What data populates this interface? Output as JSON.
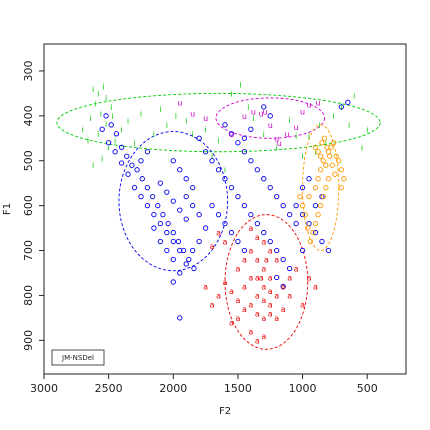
{
  "chart_data": {
    "type": "scatter",
    "title": "",
    "xlabel": "F2",
    "ylabel": "F1",
    "xlim": [
      3000,
      200
    ],
    "ylim": [
      975,
      240
    ],
    "x_reversed": true,
    "y_reversed": true,
    "x_ticks": [
      3000,
      2500,
      2000,
      1500,
      1000,
      500
    ],
    "y_ticks": [
      300,
      400,
      500,
      600,
      700,
      800,
      900
    ],
    "x_tick_labels": [
      "3000",
      "2500",
      "2000",
      "1500",
      "1000",
      "500"
    ],
    "y_tick_labels": [
      "300",
      "400",
      "500",
      "600",
      "700",
      "800",
      "900"
    ],
    "grid": false,
    "legend": {
      "position": "bottom-left",
      "entries": [
        "JM-NSDel"
      ]
    },
    "series": [
      {
        "symbol": "i",
        "color": "#00cc00",
        "marker": "glyph",
        "points": [
          [
            2620,
            340
          ],
          [
            2580,
            350
          ],
          [
            2540,
            335
          ],
          [
            2600,
            372
          ],
          [
            2520,
            360
          ],
          [
            2480,
            380
          ],
          [
            2560,
            395
          ],
          [
            2640,
            405
          ],
          [
            2520,
            418
          ],
          [
            2470,
            400
          ],
          [
            2580,
            440
          ],
          [
            2660,
            455
          ],
          [
            2700,
            430
          ],
          [
            2500,
            470
          ],
          [
            2550,
            495
          ],
          [
            2620,
            510
          ],
          [
            2450,
            455
          ],
          [
            2350,
            410
          ],
          [
            2250,
            395
          ],
          [
            2100,
            385
          ],
          [
            2050,
            420
          ],
          [
            1980,
            400
          ],
          [
            1900,
            410
          ],
          [
            1850,
            440
          ],
          [
            1750,
            430
          ],
          [
            1650,
            455
          ],
          [
            1550,
            350
          ],
          [
            1480,
            330
          ],
          [
            1420,
            380
          ],
          [
            1380,
            405
          ],
          [
            1300,
            440
          ],
          [
            1200,
            470
          ],
          [
            1100,
            410
          ],
          [
            1050,
            445
          ],
          [
            950,
            445
          ],
          [
            870,
            420
          ],
          [
            820,
            460
          ],
          [
            760,
            400
          ],
          [
            700,
            380
          ],
          [
            640,
            420
          ],
          [
            600,
            355
          ],
          [
            540,
            470
          ],
          [
            500,
            430
          ],
          [
            2400,
            430
          ],
          [
            2300,
            460
          ],
          [
            2150,
            440
          ],
          [
            1700,
            490
          ],
          [
            1600,
            520
          ],
          [
            1000,
            490
          ],
          [
            900,
            480
          ]
        ]
      },
      {
        "symbol": "o",
        "color": "#0000ee",
        "marker": "circle",
        "points": [
          [
            2520,
            400
          ],
          [
            2480,
            420
          ],
          [
            2440,
            440
          ],
          [
            2400,
            470
          ],
          [
            2360,
            490
          ],
          [
            2320,
            510
          ],
          [
            2280,
            520
          ],
          [
            2240,
            540
          ],
          [
            2200,
            560
          ],
          [
            2160,
            580
          ],
          [
            2120,
            600
          ],
          [
            2080,
            620
          ],
          [
            2040,
            640
          ],
          [
            2000,
            660
          ],
          [
            1960,
            680
          ],
          [
            1920,
            700
          ],
          [
            1880,
            720
          ],
          [
            1840,
            740
          ],
          [
            2100,
            550
          ],
          [
            2050,
            570
          ],
          [
            2000,
            590
          ],
          [
            1950,
            610
          ],
          [
            1900,
            630
          ],
          [
            2150,
            620
          ],
          [
            2100,
            640
          ],
          [
            2050,
            660
          ],
          [
            2000,
            680
          ],
          [
            1950,
            700
          ],
          [
            1900,
            580
          ],
          [
            1850,
            600
          ],
          [
            1800,
            620
          ],
          [
            2200,
            600
          ],
          [
            2150,
            650
          ],
          [
            2100,
            680
          ],
          [
            2050,
            700
          ],
          [
            2000,
            720
          ],
          [
            2250,
            580
          ],
          [
            2300,
            560
          ],
          [
            2350,
            530
          ],
          [
            2400,
            505
          ],
          [
            2450,
            480
          ],
          [
            2500,
            460
          ],
          [
            2550,
            430
          ],
          [
            1800,
            450
          ],
          [
            1750,
            480
          ],
          [
            1700,
            500
          ],
          [
            1650,
            520
          ],
          [
            1600,
            540
          ],
          [
            1550,
            560
          ],
          [
            1500,
            580
          ],
          [
            1450,
            600
          ],
          [
            1400,
            620
          ],
          [
            1350,
            640
          ],
          [
            1300,
            660
          ],
          [
            1250,
            680
          ],
          [
            1200,
            700
          ],
          [
            1150,
            720
          ],
          [
            1100,
            740
          ],
          [
            1050,
            600
          ],
          [
            1000,
            620
          ],
          [
            950,
            640
          ],
          [
            900,
            660
          ],
          [
            850,
            680
          ],
          [
            800,
            700
          ],
          [
            1600,
            420
          ],
          [
            1550,
            440
          ],
          [
            1500,
            460
          ],
          [
            1450,
            480
          ],
          [
            1400,
            500
          ],
          [
            1350,
            520
          ],
          [
            1300,
            540
          ],
          [
            1250,
            560
          ],
          [
            1200,
            580
          ],
          [
            1150,
            600
          ],
          [
            1100,
            620
          ],
          [
            1050,
            640
          ],
          [
            1000,
            560
          ],
          [
            950,
            540
          ],
          [
            1700,
            600
          ],
          [
            1650,
            620
          ],
          [
            1600,
            640
          ],
          [
            1550,
            660
          ],
          [
            1500,
            680
          ],
          [
            1450,
            700
          ],
          [
            1750,
            650
          ],
          [
            1800,
            680
          ],
          [
            1850,
            700
          ],
          [
            1900,
            730
          ],
          [
            1950,
            750
          ],
          [
            2000,
            770
          ],
          [
            1950,
            850
          ],
          [
            1200,
            760
          ],
          [
            1150,
            780
          ],
          [
            1000,
            700
          ],
          [
            900,
            600
          ],
          [
            850,
            580
          ],
          [
            700,
            380
          ],
          [
            650,
            370
          ],
          [
            1300,
            380
          ],
          [
            1250,
            400
          ],
          [
            1400,
            430
          ],
          [
            1450,
            450
          ],
          [
            2000,
            500
          ],
          [
            1950,
            520
          ],
          [
            1900,
            540
          ],
          [
            1850,
            560
          ],
          [
            2200,
            480
          ],
          [
            2250,
            500
          ]
        ]
      },
      {
        "symbol": "a",
        "color": "#ee0000",
        "marker": "glyph",
        "points": [
          [
            1400,
            650
          ],
          [
            1350,
            670
          ],
          [
            1300,
            680
          ],
          [
            1250,
            700
          ],
          [
            1200,
            720
          ],
          [
            1350,
            720
          ],
          [
            1300,
            740
          ],
          [
            1250,
            760
          ],
          [
            1400,
            760
          ],
          [
            1450,
            780
          ],
          [
            1350,
            800
          ],
          [
            1300,
            810
          ],
          [
            1250,
            820
          ],
          [
            1200,
            800
          ],
          [
            1150,
            780
          ],
          [
            1100,
            760
          ],
          [
            1400,
            820
          ],
          [
            1350,
            840
          ],
          [
            1300,
            850
          ],
          [
            1250,
            840
          ],
          [
            1450,
            830
          ],
          [
            1500,
            810
          ],
          [
            1550,
            790
          ],
          [
            1600,
            770
          ],
          [
            1650,
            800
          ],
          [
            1700,
            820
          ],
          [
            1750,
            780
          ],
          [
            1500,
            740
          ],
          [
            1450,
            720
          ],
          [
            1400,
            700
          ],
          [
            1350,
            760
          ],
          [
            1300,
            780
          ],
          [
            1250,
            790
          ],
          [
            1200,
            850
          ],
          [
            1150,
            830
          ],
          [
            1000,
            820
          ],
          [
            900,
            780
          ],
          [
            950,
            760
          ],
          [
            1350,
            900
          ],
          [
            1300,
            890
          ],
          [
            1400,
            880
          ],
          [
            1050,
            740
          ],
          [
            1100,
            800
          ],
          [
            1500,
            850
          ],
          [
            1550,
            860
          ],
          [
            1600,
            680
          ],
          [
            1650,
            660
          ],
          [
            1700,
            690
          ],
          [
            1280,
            720
          ],
          [
            1320,
            760
          ]
        ]
      },
      {
        "symbol": "o",
        "color": "#ff9900",
        "marker": "circle",
        "points": [
          [
            900,
            470
          ],
          [
            880,
            480
          ],
          [
            860,
            490
          ],
          [
            840,
            500
          ],
          [
            820,
            510
          ],
          [
            800,
            480
          ],
          [
            780,
            470
          ],
          [
            760,
            460
          ],
          [
            740,
            490
          ],
          [
            720,
            500
          ],
          [
            700,
            520
          ],
          [
            800,
            540
          ],
          [
            820,
            560
          ],
          [
            840,
            580
          ],
          [
            860,
            600
          ],
          [
            880,
            620
          ],
          [
            900,
            640
          ],
          [
            920,
            660
          ],
          [
            940,
            680
          ],
          [
            960,
            650
          ],
          [
            980,
            620
          ],
          [
            1000,
            600
          ],
          [
            1020,
            580
          ],
          [
            850,
            460
          ],
          [
            830,
            450
          ],
          [
            810,
            470
          ],
          [
            790,
            490
          ],
          [
            770,
            510
          ],
          [
            750,
            530
          ],
          [
            900,
            560
          ],
          [
            950,
            580
          ],
          [
            880,
            540
          ],
          [
            860,
            520
          ],
          [
            700,
            560
          ],
          [
            680,
            540
          ]
        ]
      },
      {
        "symbol": "u",
        "color": "#cc00cc",
        "marker": "glyph",
        "points": [
          [
            1950,
            370
          ],
          [
            1850,
            395
          ],
          [
            1750,
            405
          ],
          [
            1550,
            440
          ],
          [
            1450,
            400
          ],
          [
            1380,
            390
          ],
          [
            1320,
            395
          ],
          [
            1290,
            390
          ],
          [
            1250,
            420
          ],
          [
            1200,
            450
          ],
          [
            1180,
            460
          ],
          [
            1120,
            440
          ],
          [
            1000,
            390
          ],
          [
            950,
            375
          ],
          [
            880,
            370
          ],
          [
            1050,
            425
          ]
        ]
      }
    ],
    "ellipses": [
      {
        "color": "#00cc00",
        "cx": 1650,
        "cy": 415,
        "rx": 1250,
        "ry": 65
      },
      {
        "color": "#cc00cc",
        "cx": 1250,
        "cy": 405,
        "rx": 420,
        "ry": 45
      },
      {
        "color": "#0000ee",
        "cx": 2000,
        "cy": 590,
        "rx": 420,
        "ry": 155
      },
      {
        "color": "#ee0000",
        "cx": 1280,
        "cy": 770,
        "rx": 320,
        "ry": 150
      },
      {
        "color": "#ff9900",
        "cx": 860,
        "cy": 560,
        "rx": 140,
        "ry": 140
      }
    ]
  }
}
